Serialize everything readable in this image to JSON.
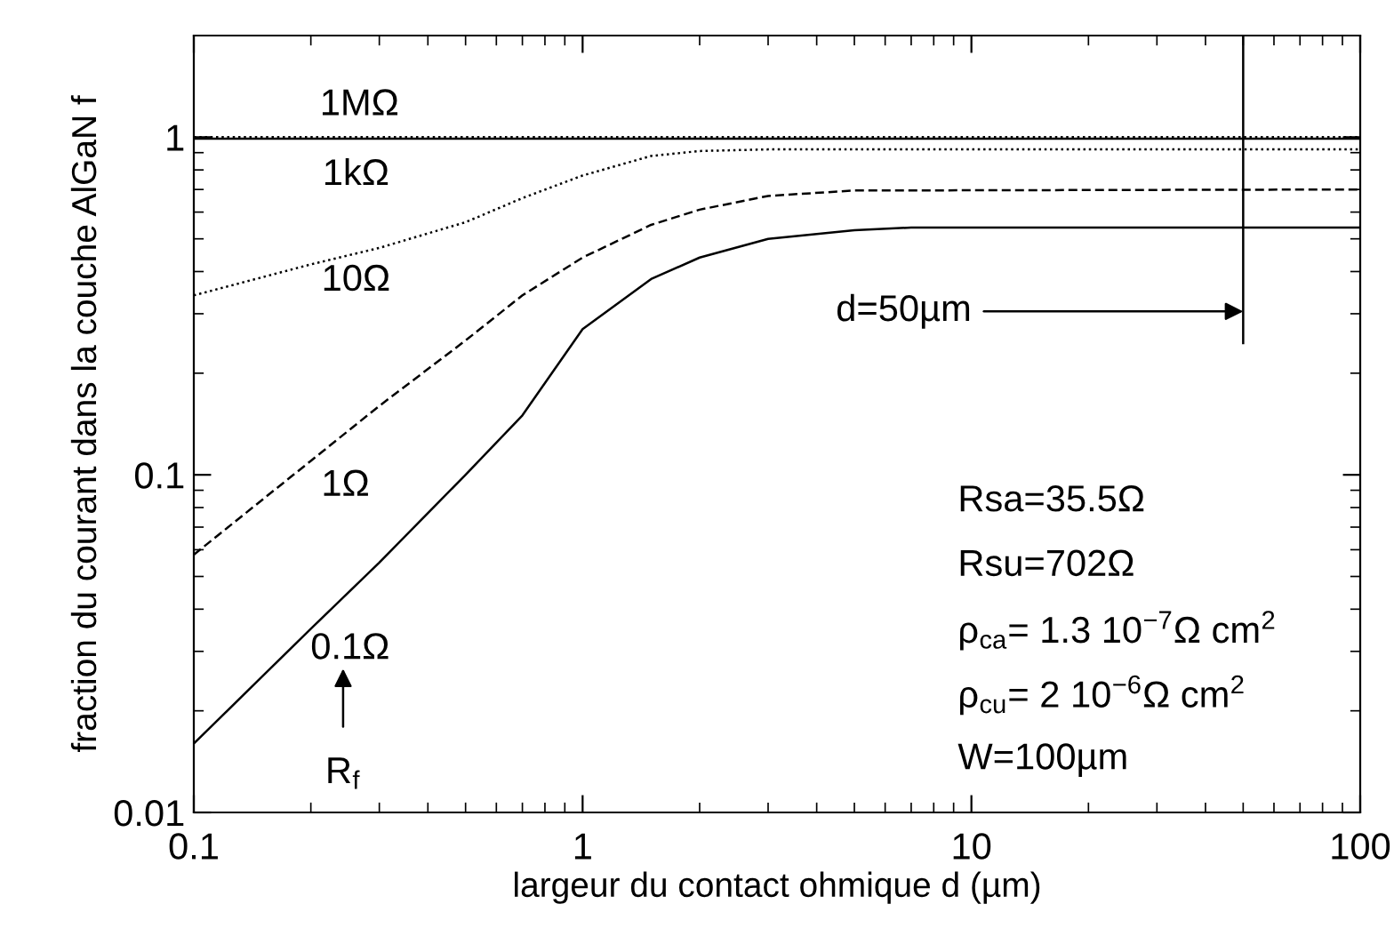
{
  "chart_data": {
    "type": "line",
    "xlabel": "largeur du contact ohmique d (µm)",
    "ylabel": "fraction du courant dans la couche AlGaN f",
    "log": "xy",
    "xlim": [
      0.1,
      100
    ],
    "ylim": [
      0.01,
      2
    ],
    "xticks": [
      0.1,
      1,
      10,
      100
    ],
    "yticks": [
      0.01,
      0.1,
      1
    ],
    "grid": false,
    "legend": false,
    "series": [
      {
        "color": "#000000",
        "line_style": "dotted",
        "x": [
          0.1,
          1,
          10,
          100
        ],
        "values": [
          1.0,
          1.0,
          1.0,
          1.0
        ]
      },
      {
        "color": "#000000",
        "line_style": "solid",
        "x": [
          0.1,
          1,
          10,
          100
        ],
        "values": [
          0.99,
          0.99,
          0.99,
          0.99
        ]
      },
      {
        "color": "#000000",
        "line_style": "dotted",
        "x": [
          0.1,
          0.2,
          0.3,
          0.5,
          0.7,
          1,
          1.5,
          2,
          3,
          5,
          100
        ],
        "values": [
          0.34,
          0.42,
          0.47,
          0.56,
          0.66,
          0.77,
          0.88,
          0.91,
          0.92,
          0.92,
          0.92
        ]
      },
      {
        "color": "#000000",
        "line_style": "dashed",
        "x": [
          0.1,
          0.2,
          0.3,
          0.5,
          0.7,
          1,
          1.5,
          2,
          3,
          5,
          100
        ],
        "values": [
          0.058,
          0.11,
          0.16,
          0.25,
          0.34,
          0.44,
          0.55,
          0.61,
          0.67,
          0.695,
          0.7
        ]
      },
      {
        "color": "#000000",
        "line_style": "solid",
        "x": [
          0.1,
          0.2,
          0.3,
          0.5,
          0.7,
          1,
          1.5,
          2,
          3,
          5,
          7,
          100
        ],
        "values": [
          0.016,
          0.035,
          0.055,
          0.1,
          0.15,
          0.27,
          0.38,
          0.44,
          0.5,
          0.53,
          0.54,
          0.54
        ]
      }
    ],
    "ref_lines": [
      {
        "axis": "x",
        "value": 50,
        "label": "d=50µm"
      }
    ],
    "annotations": [
      "1MΩ",
      "1kΩ",
      "10Ω",
      "1Ω",
      "0.1Ω",
      "R$_{f}$",
      "Rsa=35.5Ω",
      "Rsu=702Ω",
      "ρ$_{ca}$= 1.3 10$^{−7}$Ω cm$^{2}$",
      "ρ$_{cu}$= 2 10$^{−6}$Ω cm$^{2}$",
      "W=100µm"
    ]
  }
}
